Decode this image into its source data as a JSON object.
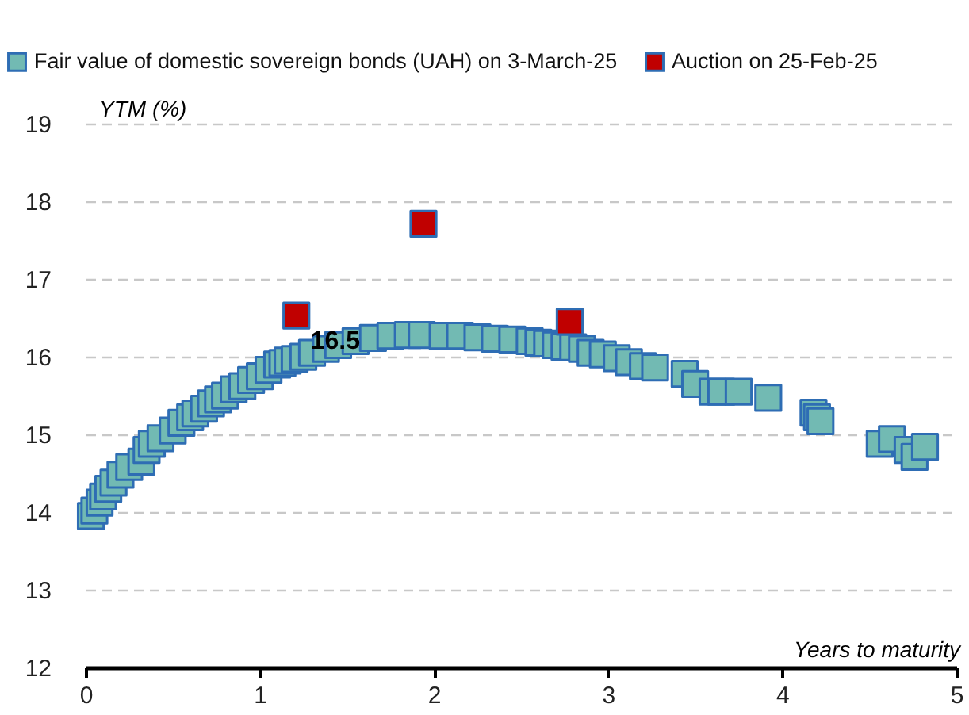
{
  "chart_data": {
    "type": "scatter",
    "xlabel": "Years to maturity",
    "ylabel": "YTM (%)",
    "xlim": [
      0,
      5
    ],
    "xticks": [
      0,
      1,
      2,
      3,
      4,
      5
    ],
    "ylim": [
      12,
      19
    ],
    "yticks": [
      12,
      13,
      14,
      15,
      16,
      17,
      18,
      19
    ],
    "grid": "y",
    "legend": "top",
    "marker": "square",
    "series": [
      {
        "name": "Fair value of domestic sovereign bonds (UAH) on 3-March-25",
        "color": "#72bab3",
        "x": [
          0.03,
          0.05,
          0.08,
          0.1,
          0.13,
          0.16,
          0.2,
          0.25,
          0.32,
          0.35,
          0.38,
          0.43,
          0.5,
          0.55,
          0.6,
          0.63,
          0.68,
          0.72,
          0.76,
          0.8,
          0.85,
          0.9,
          0.95,
          1.0,
          1.05,
          1.1,
          1.13,
          1.16,
          1.2,
          1.25,
          1.3,
          1.38,
          1.45,
          1.55,
          1.65,
          1.75,
          1.85,
          1.93,
          2.05,
          2.15,
          2.25,
          2.35,
          2.45,
          2.55,
          2.6,
          2.65,
          2.7,
          2.75,
          2.8,
          2.85,
          2.9,
          2.97,
          3.05,
          3.12,
          3.2,
          3.27,
          3.44,
          3.5,
          3.6,
          3.65,
          3.75,
          3.92,
          4.18,
          4.2,
          4.22,
          4.56,
          4.63,
          4.72,
          4.76,
          4.82
        ],
        "values": [
          13.95,
          14.02,
          14.12,
          14.2,
          14.3,
          14.38,
          14.48,
          14.58,
          14.65,
          14.8,
          14.88,
          14.95,
          15.05,
          15.15,
          15.22,
          15.27,
          15.33,
          15.4,
          15.45,
          15.5,
          15.58,
          15.62,
          15.7,
          15.75,
          15.83,
          15.9,
          15.92,
          15.95,
          15.97,
          16.0,
          16.05,
          16.1,
          16.15,
          16.2,
          16.24,
          16.27,
          16.28,
          16.28,
          16.27,
          16.27,
          16.25,
          16.23,
          16.22,
          16.2,
          16.18,
          16.17,
          16.15,
          16.13,
          16.12,
          16.1,
          16.05,
          16.03,
          15.98,
          15.93,
          15.88,
          15.86,
          15.78,
          15.65,
          15.55,
          15.55,
          15.55,
          15.47,
          15.28,
          15.22,
          15.17,
          14.88,
          14.94,
          14.8,
          14.71,
          14.84
        ]
      },
      {
        "name": "Auction on 25-Feb-25",
        "color": "#c00000",
        "x": [
          1.21,
          1.94,
          2.78
        ],
        "values": [
          16.53,
          17.71,
          16.45
        ],
        "value_labels": [
          "16.5",
          null,
          null
        ]
      }
    ]
  }
}
